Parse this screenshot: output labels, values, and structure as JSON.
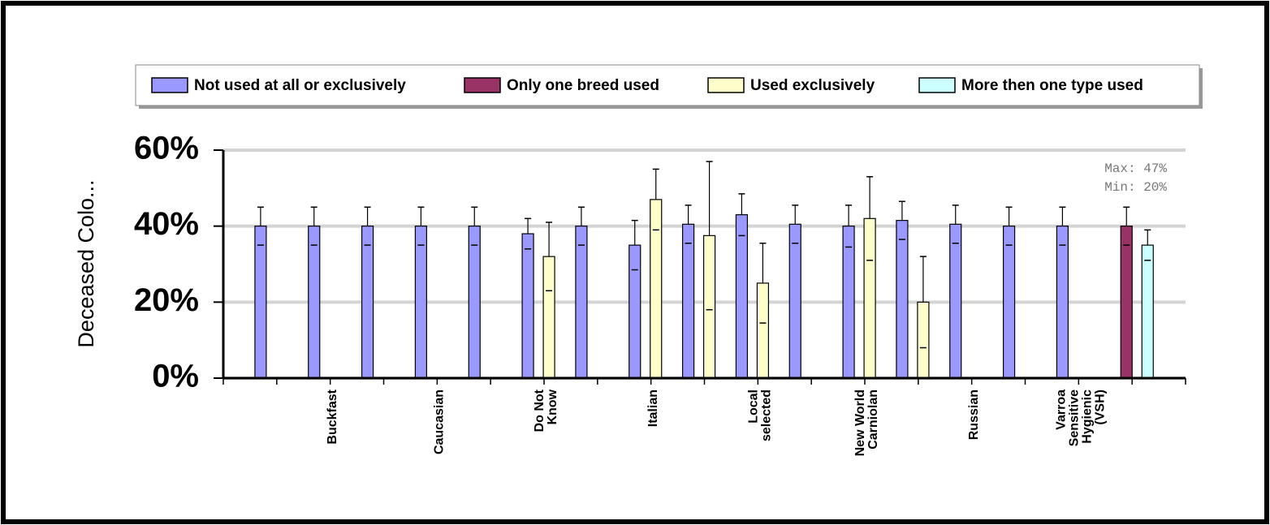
{
  "chart_data": {
    "type": "bar",
    "ylabel": "Deceased Colo...",
    "annotations": [
      "Max: 47%",
      "Min: 20%"
    ],
    "categories": [
      null,
      [
        "Buckfast"
      ],
      null,
      [
        "Caucasian"
      ],
      null,
      [
        "Do Not",
        "Know"
      ],
      null,
      [
        "Italian"
      ],
      null,
      [
        "Local",
        "selected"
      ],
      null,
      [
        "New World",
        "Carniolan"
      ],
      null,
      [
        "Russian"
      ],
      null,
      [
        "Varroa",
        "Sensitive",
        "Hygienic",
        "(VSH)"
      ],
      null
    ],
    "series": [
      {
        "name": "Not used at all or exclusively",
        "color": "#9999ff",
        "values": [
          40,
          40,
          40,
          40,
          40,
          38,
          40,
          35,
          40.5,
          43,
          40.5,
          40,
          41.5,
          40.5,
          40,
          40,
          null
        ],
        "errors": [
          5,
          5,
          5,
          5,
          5,
          4,
          5,
          6.5,
          5,
          5.5,
          5,
          5.5,
          5,
          5,
          5,
          5,
          null
        ]
      },
      {
        "name": "Only one breed used",
        "color": "#993366",
        "values": [
          null,
          null,
          null,
          null,
          null,
          null,
          null,
          null,
          null,
          null,
          null,
          null,
          null,
          null,
          null,
          null,
          40
        ],
        "errors": [
          null,
          null,
          null,
          null,
          null,
          null,
          null,
          null,
          null,
          null,
          null,
          null,
          null,
          null,
          null,
          null,
          5
        ]
      },
      {
        "name": "Used exclusively",
        "color": "#ffffcc",
        "values": [
          null,
          null,
          null,
          null,
          null,
          32,
          null,
          47,
          37.5,
          25,
          null,
          42,
          20,
          null,
          null,
          null,
          null
        ],
        "errors": [
          null,
          null,
          null,
          null,
          null,
          9,
          null,
          8,
          19.5,
          10.5,
          null,
          11,
          12,
          null,
          null,
          null,
          null
        ]
      },
      {
        "name": "More then one type used",
        "color": "#ccffff",
        "values": [
          null,
          null,
          null,
          null,
          null,
          null,
          null,
          null,
          null,
          null,
          null,
          null,
          null,
          null,
          null,
          null,
          35
        ],
        "errors": [
          null,
          null,
          null,
          null,
          null,
          null,
          null,
          null,
          null,
          null,
          null,
          null,
          null,
          null,
          null,
          null,
          4
        ]
      }
    ],
    "ylim": [
      0,
      60
    ],
    "yticks": [
      {
        "value": 0,
        "label": "0%"
      },
      {
        "value": 20,
        "label": "20%"
      },
      {
        "value": 40,
        "label": "40%"
      },
      {
        "value": 60,
        "label": "60%"
      }
    ],
    "grid": true,
    "legend": "top"
  }
}
